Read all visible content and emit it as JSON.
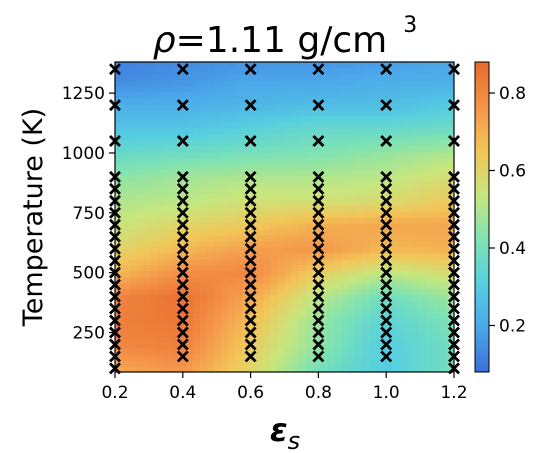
{
  "chart_data": {
    "type": "heatmap",
    "title_symbol": "ρ",
    "title_text": "=1.11 g/cm",
    "title_superscript": "3",
    "xlabel_symbol": "ε",
    "xlabel_subscript": "s",
    "ylabel": "Temperature (K)",
    "xlim": [
      0.2,
      1.2
    ],
    "ylim": [
      85,
      1380
    ],
    "x_ticks": [
      {
        "value": 0.2,
        "label": "0.2"
      },
      {
        "value": 0.4,
        "label": "0.4"
      },
      {
        "value": 0.6,
        "label": "0.6"
      },
      {
        "value": 0.8,
        "label": "0.8"
      },
      {
        "value": 1.0,
        "label": "1.0"
      },
      {
        "value": 1.2,
        "label": "1.2"
      }
    ],
    "y_ticks": [
      {
        "value": 250,
        "label": "250"
      },
      {
        "value": 500,
        "label": "500"
      },
      {
        "value": 750,
        "label": "750"
      },
      {
        "value": 1000,
        "label": "1000"
      },
      {
        "value": 1250,
        "label": "1250"
      }
    ],
    "colorbar": {
      "range": [
        0.08,
        0.88
      ],
      "ticks": [
        {
          "value": 0.2,
          "label": "0.2"
        },
        {
          "value": 0.4,
          "label": "0.4"
        },
        {
          "value": 0.6,
          "label": "0.6"
        },
        {
          "value": 0.8,
          "label": "0.8"
        }
      ],
      "colormap": [
        "#3b6fd8",
        "#4ba6ea",
        "#56cfe0",
        "#7fe3b2",
        "#c6e67e",
        "#f3c557",
        "#f4934a",
        "#e86a2c"
      ]
    },
    "grid_x": [
      0.2,
      0.4,
      0.6,
      0.8,
      1.0,
      1.2
    ],
    "grid_y": [
      100,
      200,
      300,
      400,
      500,
      600,
      700,
      800,
      900,
      1000,
      1100,
      1200,
      1300,
      1380
    ],
    "grid_values": [
      [
        0.72,
        0.76,
        0.6,
        0.4,
        0.3,
        0.4
      ],
      [
        0.8,
        0.82,
        0.63,
        0.45,
        0.3,
        0.4
      ],
      [
        0.82,
        0.84,
        0.67,
        0.46,
        0.33,
        0.42
      ],
      [
        0.8,
        0.86,
        0.72,
        0.52,
        0.38,
        0.48
      ],
      [
        0.68,
        0.78,
        0.8,
        0.62,
        0.52,
        0.58
      ],
      [
        0.6,
        0.68,
        0.74,
        0.76,
        0.68,
        0.7
      ],
      [
        0.54,
        0.6,
        0.64,
        0.7,
        0.72,
        0.72
      ],
      [
        0.5,
        0.52,
        0.56,
        0.56,
        0.58,
        0.64
      ],
      [
        0.44,
        0.48,
        0.5,
        0.5,
        0.52,
        0.58
      ],
      [
        0.36,
        0.38,
        0.4,
        0.42,
        0.46,
        0.5
      ],
      [
        0.28,
        0.28,
        0.32,
        0.36,
        0.36,
        0.38
      ],
      [
        0.22,
        0.22,
        0.24,
        0.26,
        0.26,
        0.3
      ],
      [
        0.14,
        0.16,
        0.2,
        0.2,
        0.22,
        0.22
      ],
      [
        0.12,
        0.14,
        0.16,
        0.16,
        0.18,
        0.2
      ]
    ],
    "sample_points": [
      {
        "x": 0.2,
        "y": [
          100,
          150,
          200,
          250,
          300,
          350,
          400,
          450,
          500,
          550,
          600,
          650,
          700,
          750,
          800,
          850,
          900,
          1050,
          1200,
          1350
        ]
      },
      {
        "x": 0.4,
        "y": [
          150,
          200,
          250,
          300,
          350,
          400,
          450,
          500,
          550,
          600,
          650,
          700,
          750,
          800,
          850,
          900,
          1050,
          1200,
          1350
        ]
      },
      {
        "x": 0.6,
        "y": [
          150,
          200,
          250,
          300,
          350,
          400,
          450,
          500,
          550,
          600,
          650,
          700,
          750,
          800,
          850,
          900,
          1050,
          1200,
          1350
        ]
      },
      {
        "x": 0.8,
        "y": [
          150,
          200,
          250,
          300,
          350,
          400,
          450,
          500,
          550,
          600,
          650,
          700,
          750,
          800,
          850,
          900,
          1050,
          1200,
          1350
        ]
      },
      {
        "x": 1.0,
        "y": [
          150,
          200,
          250,
          300,
          350,
          400,
          450,
          500,
          550,
          600,
          650,
          700,
          750,
          800,
          850,
          900,
          1050,
          1200,
          1350
        ]
      },
      {
        "x": 1.2,
        "y": [
          100,
          150,
          200,
          250,
          300,
          350,
          400,
          450,
          500,
          550,
          600,
          650,
          700,
          750,
          800,
          850,
          900,
          1050,
          1200,
          1350
        ]
      }
    ]
  }
}
